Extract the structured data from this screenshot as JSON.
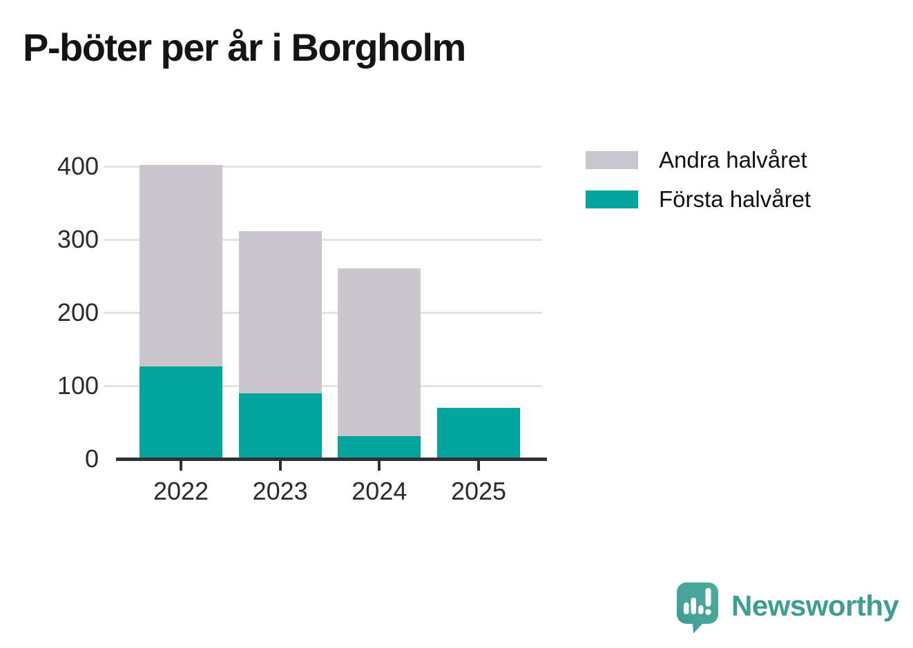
{
  "title": "P-böter per år i Borgholm",
  "chart_data": {
    "type": "bar",
    "stacked": true,
    "title": "P-böter per år i Borgholm",
    "categories": [
      "2022",
      "2023",
      "2024",
      "2025"
    ],
    "series": [
      {
        "name": "Första halvåret",
        "color": "#00a49c",
        "values": [
          126,
          90,
          31,
          70
        ]
      },
      {
        "name": "Andra halvåret",
        "color": "#c9c6cf",
        "values": [
          276,
          221,
          229,
          0
        ]
      }
    ],
    "totals": [
      402,
      311,
      260,
      70
    ],
    "xlabel": "",
    "ylabel": "",
    "ylim": [
      0,
      400
    ],
    "yticks": [
      0,
      100,
      200,
      300,
      400
    ],
    "grid": true,
    "legend_position": "top-right",
    "legend_order": [
      "Andra halvåret",
      "Första halvåret"
    ]
  },
  "legend": {
    "items": [
      {
        "label": "Andra halvåret",
        "color": "#c9c6cf"
      },
      {
        "label": "Första halvåret",
        "color": "#00a49c"
      }
    ]
  },
  "logo": {
    "text": "Newsworthy",
    "text_color": "#3f9e92",
    "icon_color": "#47a79b",
    "icon": "speech-bubble-bar-chart-exclamation"
  },
  "colors": {
    "background": "#ffffff",
    "axis": "#303030",
    "gridline": "#e4e4e6",
    "tick_label": "#2b2b2b",
    "title": "#141414"
  }
}
